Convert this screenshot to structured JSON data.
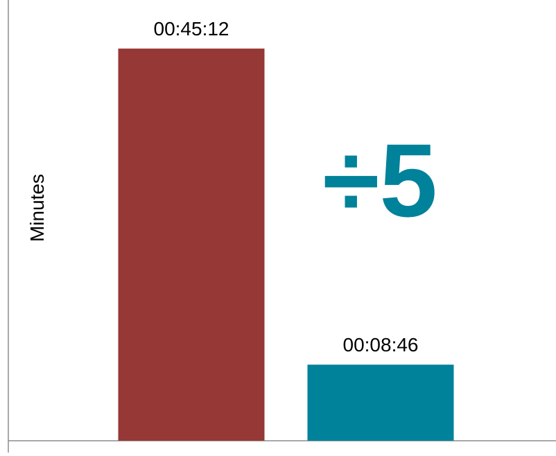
{
  "chart_data": {
    "type": "bar",
    "categories": [
      "",
      ""
    ],
    "values": [
      45.2,
      8.77
    ],
    "data_labels": [
      "00:45:12",
      "00:08:46"
    ],
    "colors": [
      "#963835",
      "#00829A"
    ],
    "title": "",
    "xlabel": "",
    "ylabel": "Minutes",
    "ylim": [
      0,
      50
    ],
    "grid": false,
    "legend": "none",
    "annotation": {
      "text": "÷5",
      "color": "#00829A"
    }
  }
}
